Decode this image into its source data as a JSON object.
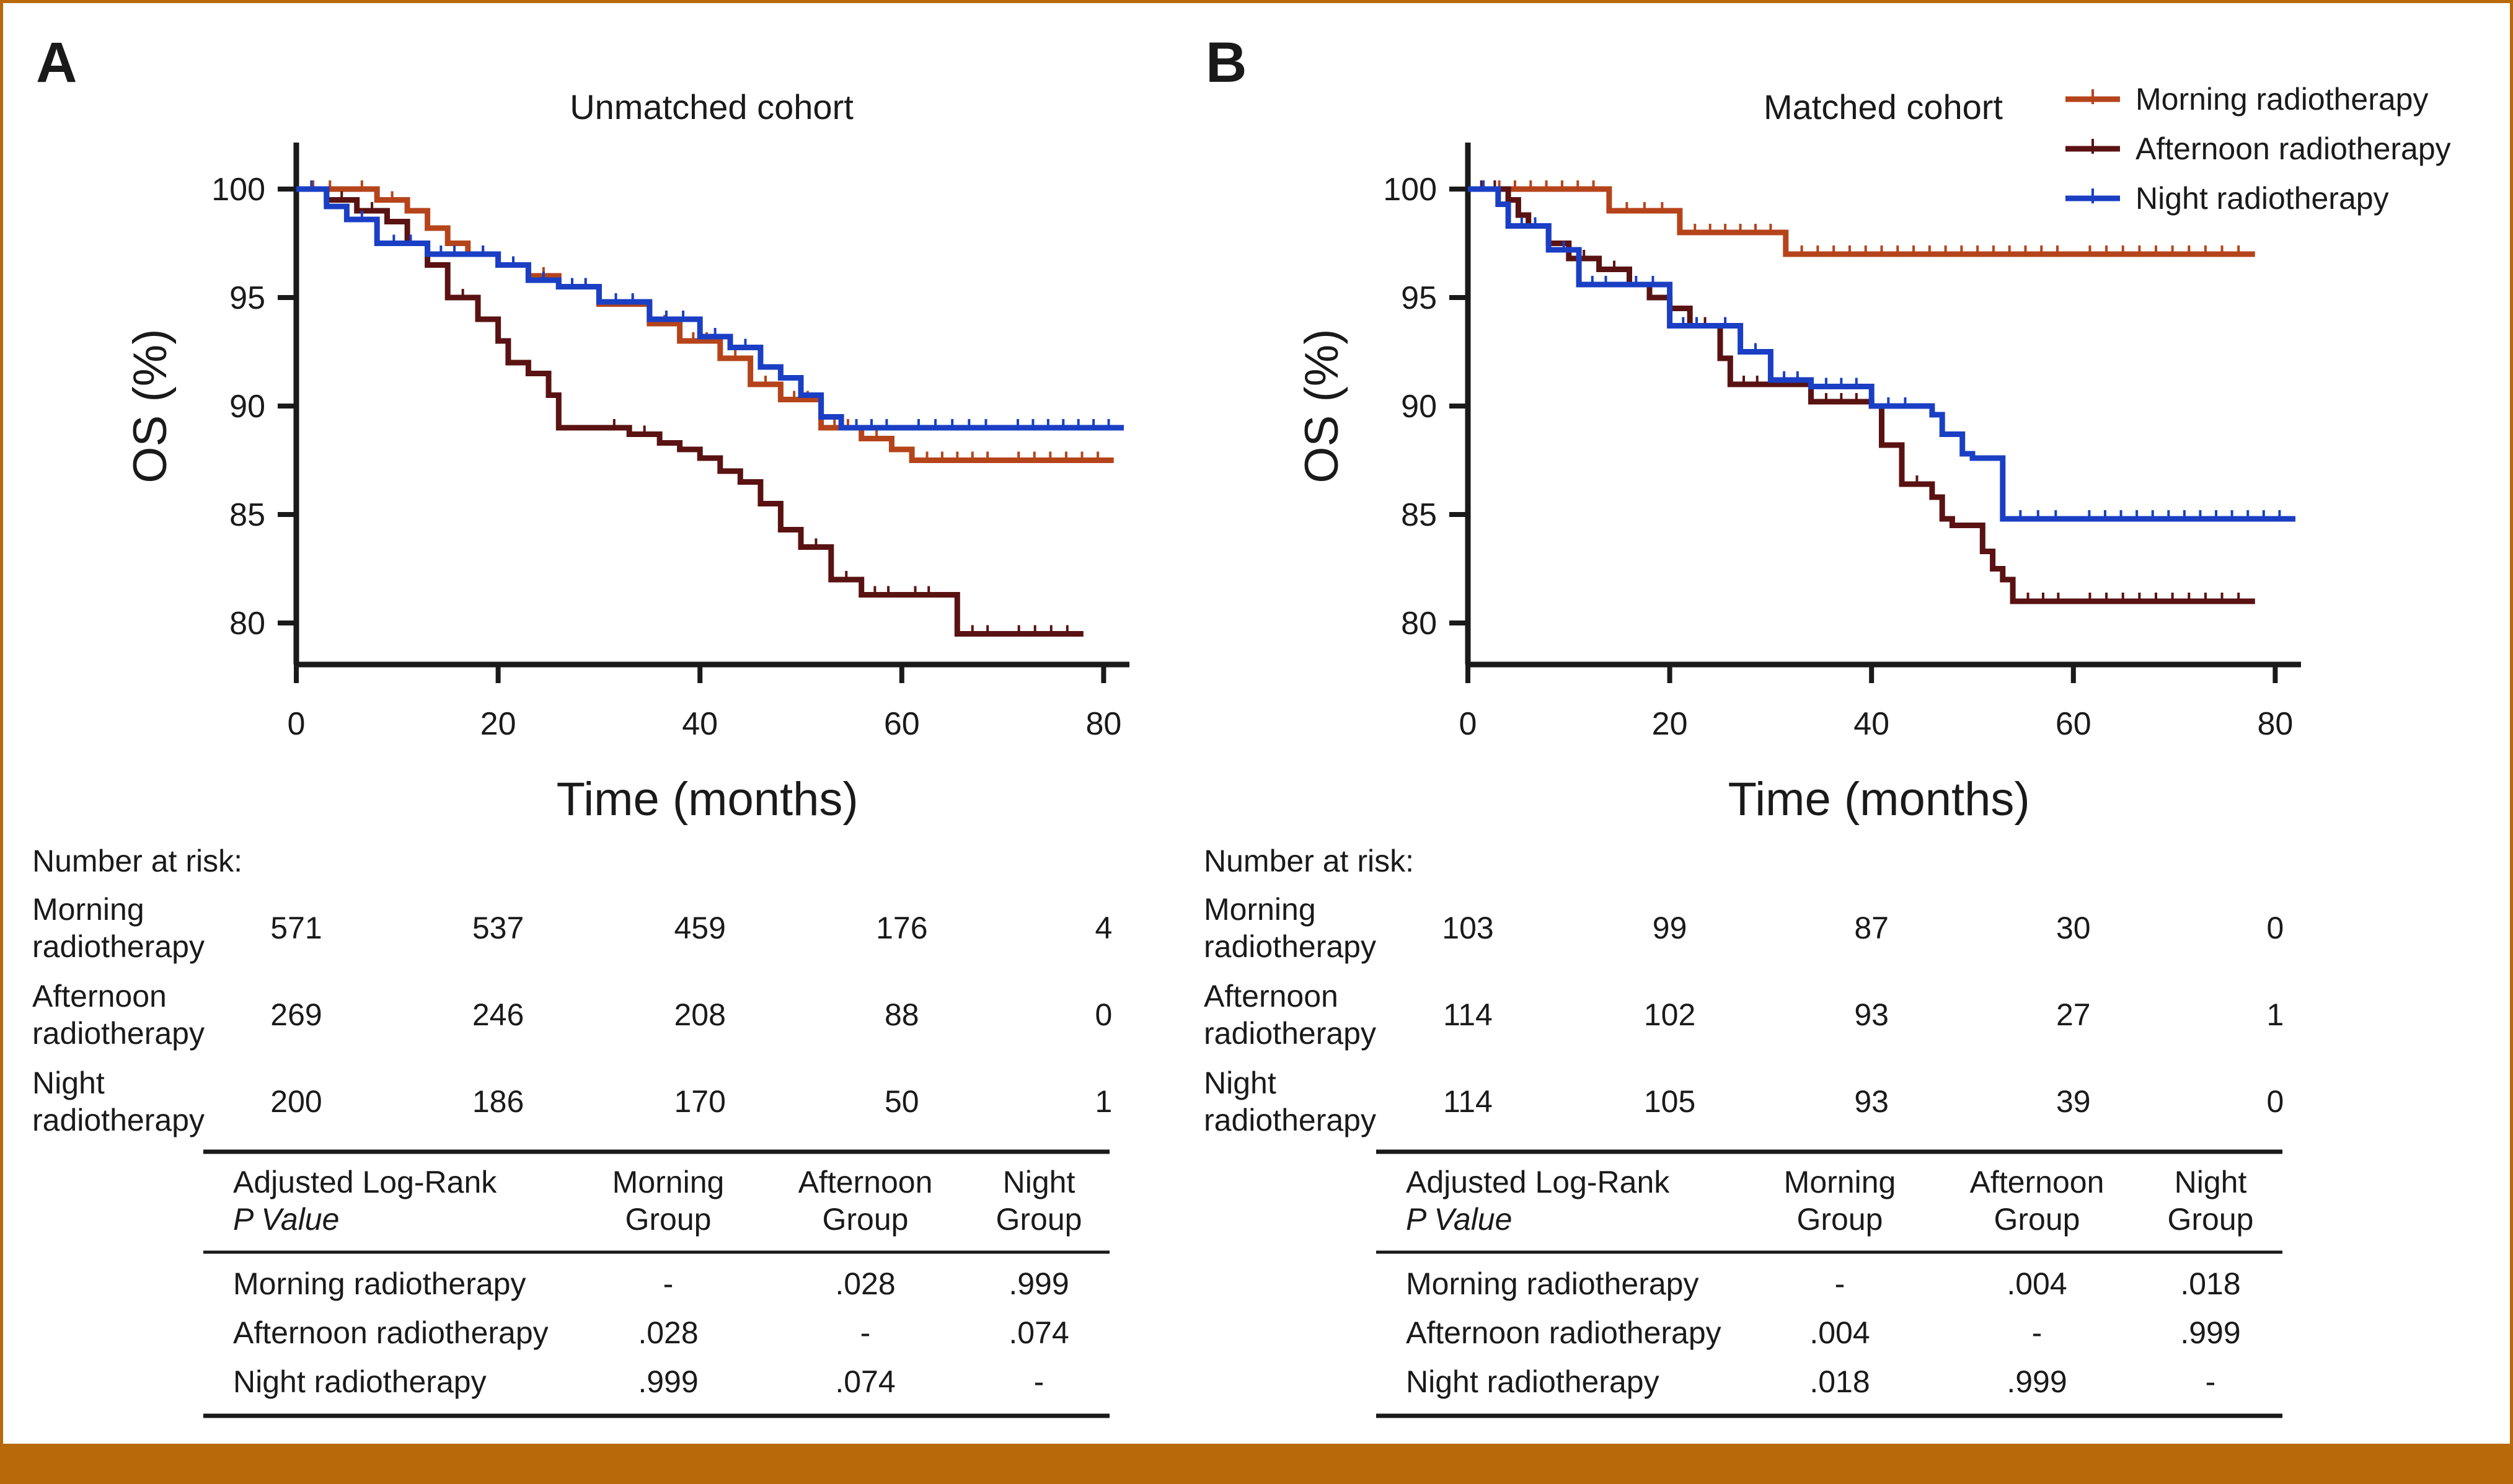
{
  "colors": {
    "morning": "#b5441b",
    "afternoon": "#5a1212",
    "night": "#1a3fc4",
    "frame": "#b8690a"
  },
  "legend": [
    "Morning radiotherapy",
    "Afternoon radiotherapy",
    "Night radiotherapy"
  ],
  "risk_heading": "Number at risk:",
  "chart_data": [
    {
      "panel": "A",
      "type": "line",
      "title": "Unmatched cohort",
      "xlabel": "Time (months)",
      "ylabel": "OS (%)",
      "xlim": [
        0,
        82
      ],
      "ylim": [
        78,
        101
      ],
      "xticks": [
        "0",
        "20",
        "40",
        "60",
        "80"
      ],
      "yticks": [
        "80",
        "85",
        "90",
        "95",
        "100"
      ],
      "series": [
        {
          "name": "Morning radiotherapy",
          "key": "morning",
          "x": [
            0,
            5,
            8,
            11,
            13,
            15,
            17,
            20,
            23,
            26,
            30,
            35,
            38,
            42,
            45,
            48,
            52,
            56,
            59,
            61,
            70,
            81
          ],
          "y": [
            100,
            100,
            99.5,
            99,
            98.2,
            97.5,
            97,
            96.5,
            96,
            95.5,
            94.7,
            93.8,
            93,
            92.2,
            91,
            90.3,
            89,
            88.5,
            88,
            87.5,
            87.5,
            87.5
          ]
        },
        {
          "name": "Afternoon radiotherapy",
          "key": "afternoon",
          "x": [
            0,
            3,
            6,
            9,
            11,
            13,
            15,
            18,
            20,
            21,
            23,
            25,
            26,
            28,
            30,
            33,
            36,
            38,
            40,
            42,
            44,
            46,
            48,
            50,
            53,
            56,
            60,
            64,
            65.5,
            70,
            78
          ],
          "y": [
            100,
            99.5,
            99,
            98.5,
            97.5,
            96.5,
            95,
            94,
            93,
            92,
            91.5,
            90.5,
            89,
            89,
            89,
            88.7,
            88.3,
            88,
            87.6,
            87,
            86.5,
            85.5,
            84.3,
            83.5,
            82,
            81.3,
            81.3,
            81.3,
            79.5,
            79.5,
            79.5
          ]
        },
        {
          "name": "Night radiotherapy",
          "key": "night",
          "x": [
            0,
            3,
            5,
            8,
            13,
            17,
            20,
            23,
            26,
            30,
            35,
            40,
            43,
            46,
            48,
            50,
            52,
            54,
            60,
            70,
            82
          ],
          "y": [
            100,
            99.2,
            98.6,
            97.5,
            97,
            97,
            96.5,
            95.8,
            95.5,
            94.8,
            94,
            93.2,
            92.7,
            91.8,
            91.3,
            90.5,
            89.5,
            89,
            89,
            89,
            89
          ]
        }
      ]
    },
    {
      "panel": "B",
      "type": "line",
      "title": "Matched cohort",
      "xlabel": "Time (months)",
      "ylabel": "OS (%)",
      "xlim": [
        0,
        82
      ],
      "ylim": [
        78,
        101
      ],
      "xticks": [
        "0",
        "20",
        "40",
        "60",
        "80"
      ],
      "yticks": [
        "80",
        "85",
        "90",
        "95",
        "100"
      ],
      "series": [
        {
          "name": "Morning radiotherapy",
          "key": "morning",
          "x": [
            0,
            14,
            21,
            31.5,
            60,
            78
          ],
          "y": [
            100,
            99,
            98,
            97,
            97,
            97
          ]
        },
        {
          "name": "Afternoon radiotherapy",
          "key": "afternoon",
          "x": [
            0,
            4,
            5,
            6,
            8,
            10,
            13,
            16,
            18,
            20,
            22,
            25,
            26,
            30,
            34,
            40,
            41,
            43,
            46,
            47,
            48,
            49,
            51,
            52,
            53,
            54,
            60,
            78
          ],
          "y": [
            100,
            99.5,
            98.8,
            98.3,
            97.5,
            96.8,
            96.3,
            95.6,
            95,
            94.5,
            93.7,
            92.2,
            91,
            91,
            90.2,
            90,
            88.2,
            86.4,
            85.8,
            84.8,
            84.5,
            84.5,
            83.3,
            82.5,
            82,
            81,
            81,
            81
          ]
        },
        {
          "name": "Night radiotherapy",
          "key": "night",
          "x": [
            0,
            3,
            4,
            8,
            11,
            15,
            20,
            24,
            27,
            30,
            34,
            40,
            45,
            46,
            47,
            49,
            50,
            52,
            53,
            60,
            82
          ],
          "y": [
            100,
            99.3,
            98.3,
            97.2,
            95.6,
            95.6,
            93.7,
            93.7,
            92.5,
            91.2,
            90.9,
            90,
            90,
            89.6,
            88.7,
            87.8,
            87.6,
            87.6,
            84.8,
            84.8,
            84.8
          ]
        }
      ],
      "legend_position": "top-right"
    }
  ],
  "panels": [
    {
      "letter": "A",
      "title": "Unmatched cohort",
      "risk": [
        {
          "label": [
            "Morning",
            "radiotherapy"
          ],
          "values": [
            "571",
            "537",
            "459",
            "176",
            "4"
          ]
        },
        {
          "label": [
            "Afternoon",
            "radiotherapy"
          ],
          "values": [
            "269",
            "246",
            "208",
            "88",
            "0"
          ]
        },
        {
          "label": [
            "Night",
            "radiotherapy"
          ],
          "values": [
            "200",
            "186",
            "170",
            "50",
            "1"
          ]
        }
      ],
      "pvalue_table": {
        "header": [
          [
            "Adjusted Log-Rank",
            "P Value"
          ],
          [
            "Morning",
            "Group"
          ],
          [
            "Afternoon",
            "Group"
          ],
          [
            "Night",
            "Group"
          ]
        ],
        "rows": [
          [
            "Morning radiotherapy",
            "-",
            ".028",
            ".999"
          ],
          [
            "Afternoon radiotherapy",
            ".028",
            "-",
            ".074"
          ],
          [
            "Night radiotherapy",
            ".999",
            ".074",
            "-"
          ]
        ]
      }
    },
    {
      "letter": "B",
      "title": "Matched cohort",
      "risk": [
        {
          "label": [
            "Morning",
            "radiotherapy"
          ],
          "values": [
            "103",
            "99",
            "87",
            "30",
            "0"
          ]
        },
        {
          "label": [
            "Afternoon",
            "radiotherapy"
          ],
          "values": [
            "114",
            "102",
            "93",
            "27",
            "1"
          ]
        },
        {
          "label": [
            "Night",
            "radiotherapy"
          ],
          "values": [
            "114",
            "105",
            "93",
            "39",
            "0"
          ]
        }
      ],
      "pvalue_table": {
        "header": [
          [
            "Adjusted Log-Rank",
            "P Value"
          ],
          [
            "Morning",
            "Group"
          ],
          [
            "Afternoon",
            "Group"
          ],
          [
            "Night",
            "Group"
          ]
        ],
        "rows": [
          [
            "Morning radiotherapy",
            "-",
            ".004",
            ".018"
          ],
          [
            "Afternoon radiotherapy",
            ".004",
            "-",
            ".999"
          ],
          [
            "Night radiotherapy",
            ".018",
            ".999",
            "-"
          ]
        ]
      }
    }
  ]
}
